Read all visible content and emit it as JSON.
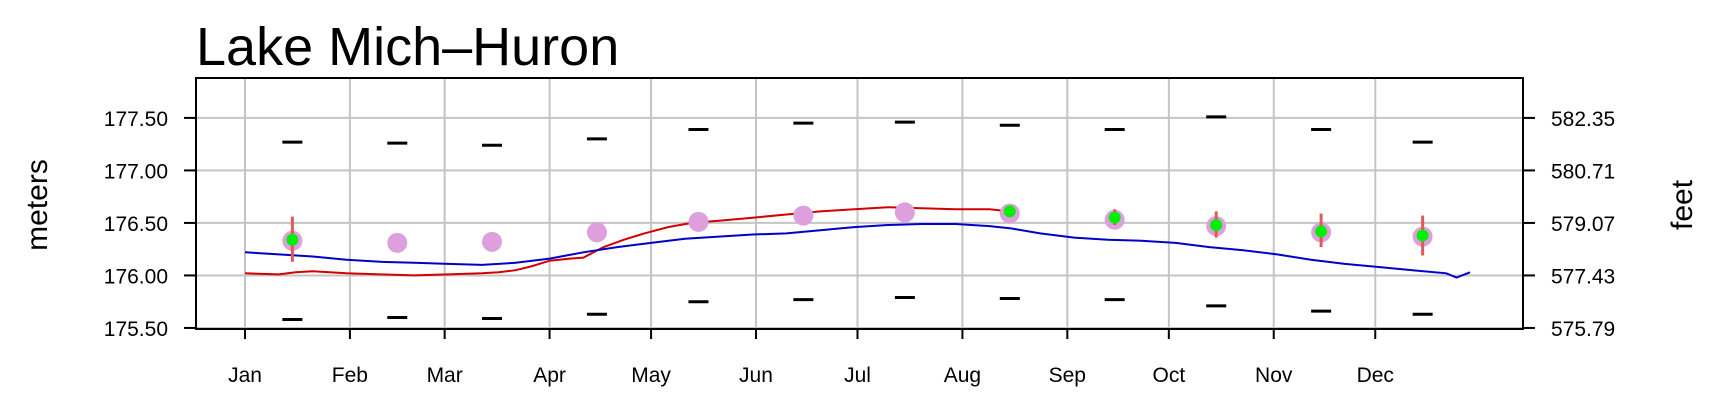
{
  "chart_data": {
    "type": "line",
    "title": "Lake Mich–Huron",
    "ylabel_left": "meters",
    "ylabel_right": "feet",
    "xlim": [
      0,
      365
    ],
    "ylim": [
      175.49,
      177.88
    ],
    "grid": true,
    "months": [
      {
        "label": "Jan",
        "day": 0
      },
      {
        "label": "Feb",
        "day": 31
      },
      {
        "label": "Mar",
        "day": 59
      },
      {
        "label": "Apr",
        "day": 90
      },
      {
        "label": "May",
        "day": 120
      },
      {
        "label": "Jun",
        "day": 151
      },
      {
        "label": "Jul",
        "day": 181
      },
      {
        "label": "Aug",
        "day": 212
      },
      {
        "label": "Sep",
        "day": 243
      },
      {
        "label": "Oct",
        "day": 273
      },
      {
        "label": "Nov",
        "day": 304
      },
      {
        "label": "Dec",
        "day": 334
      }
    ],
    "left_ticks": [
      {
        "value": 175.5,
        "label": "175.50"
      },
      {
        "value": 176.0,
        "label": "176.00"
      },
      {
        "value": 176.5,
        "label": "176.50"
      },
      {
        "value": 177.0,
        "label": "177.00"
      },
      {
        "value": 177.5,
        "label": "177.50"
      }
    ],
    "right_ticks": [
      {
        "value": 175.5,
        "label": "575.79"
      },
      {
        "value": 176.0,
        "label": "577.43"
      },
      {
        "value": 176.5,
        "label": "579.07"
      },
      {
        "value": 177.0,
        "label": "580.71"
      },
      {
        "value": 177.5,
        "label": "582.35"
      }
    ],
    "monthly_days": [
      14,
      45,
      73,
      104,
      134,
      165,
      195,
      226,
      257,
      287,
      318,
      348
    ],
    "record_high": [
      177.27,
      177.26,
      177.24,
      177.3,
      177.39,
      177.45,
      177.46,
      177.43,
      177.39,
      177.51,
      177.39,
      177.27
    ],
    "record_low": [
      175.58,
      175.6,
      175.59,
      175.63,
      175.75,
      175.77,
      175.79,
      175.78,
      175.77,
      175.71,
      175.66,
      175.63
    ],
    "long_term_mean": [
      176.33,
      176.31,
      176.32,
      176.41,
      176.51,
      176.57,
      176.6,
      176.59,
      176.53,
      176.47,
      176.41,
      176.37
    ],
    "forecast": [
      {
        "day": 14,
        "value": 176.34,
        "low": 176.13,
        "high": 176.56
      },
      {
        "day": 226,
        "value": 176.61,
        "low": 176.58,
        "high": 176.63
      },
      {
        "day": 257,
        "value": 176.55,
        "low": 176.48,
        "high": 176.63
      },
      {
        "day": 287,
        "value": 176.48,
        "low": 176.36,
        "high": 176.61
      },
      {
        "day": 318,
        "value": 176.42,
        "low": 176.27,
        "high": 176.59
      },
      {
        "day": 348,
        "value": 176.38,
        "low": 176.19,
        "high": 176.57
      }
    ],
    "series": [
      {
        "color": "#d40000",
        "points": [
          [
            0,
            176.02
          ],
          [
            10,
            176.01
          ],
          [
            15,
            176.03
          ],
          [
            20,
            176.04
          ],
          [
            30,
            176.02
          ],
          [
            40,
            176.01
          ],
          [
            50,
            176.0
          ],
          [
            60,
            176.01
          ],
          [
            70,
            176.02
          ],
          [
            75,
            176.03
          ],
          [
            80,
            176.05
          ],
          [
            85,
            176.09
          ],
          [
            90,
            176.14
          ],
          [
            96,
            176.16
          ],
          [
            100,
            176.17
          ],
          [
            103,
            176.22
          ],
          [
            106,
            176.27
          ],
          [
            112,
            176.34
          ],
          [
            118,
            176.4
          ],
          [
            125,
            176.46
          ],
          [
            132,
            176.5
          ],
          [
            140,
            176.52
          ],
          [
            150,
            176.55
          ],
          [
            160,
            176.58
          ],
          [
            170,
            176.61
          ],
          [
            180,
            176.63
          ],
          [
            190,
            176.65
          ],
          [
            200,
            176.64
          ],
          [
            210,
            176.63
          ],
          [
            220,
            176.63
          ],
          [
            226,
            176.61
          ]
        ]
      },
      {
        "color": "#0000c8",
        "points": [
          [
            0,
            176.22
          ],
          [
            10,
            176.2
          ],
          [
            20,
            176.18
          ],
          [
            30,
            176.15
          ],
          [
            40,
            176.13
          ],
          [
            50,
            176.12
          ],
          [
            60,
            176.11
          ],
          [
            70,
            176.1
          ],
          [
            80,
            176.12
          ],
          [
            90,
            176.16
          ],
          [
            100,
            176.22
          ],
          [
            110,
            176.27
          ],
          [
            120,
            176.31
          ],
          [
            130,
            176.35
          ],
          [
            140,
            176.37
          ],
          [
            150,
            176.39
          ],
          [
            160,
            176.4
          ],
          [
            170,
            176.43
          ],
          [
            180,
            176.46
          ],
          [
            190,
            176.48
          ],
          [
            200,
            176.49
          ],
          [
            210,
            176.49
          ],
          [
            220,
            176.47
          ],
          [
            226,
            176.45
          ],
          [
            235,
            176.4
          ],
          [
            245,
            176.36
          ],
          [
            255,
            176.34
          ],
          [
            265,
            176.33
          ],
          [
            275,
            176.31
          ],
          [
            285,
            176.27
          ],
          [
            295,
            176.24
          ],
          [
            305,
            176.2
          ],
          [
            315,
            176.15
          ],
          [
            325,
            176.11
          ],
          [
            335,
            176.08
          ],
          [
            345,
            176.05
          ],
          [
            355,
            176.02
          ],
          [
            358,
            175.98
          ],
          [
            362,
            176.03
          ]
        ]
      }
    ]
  }
}
